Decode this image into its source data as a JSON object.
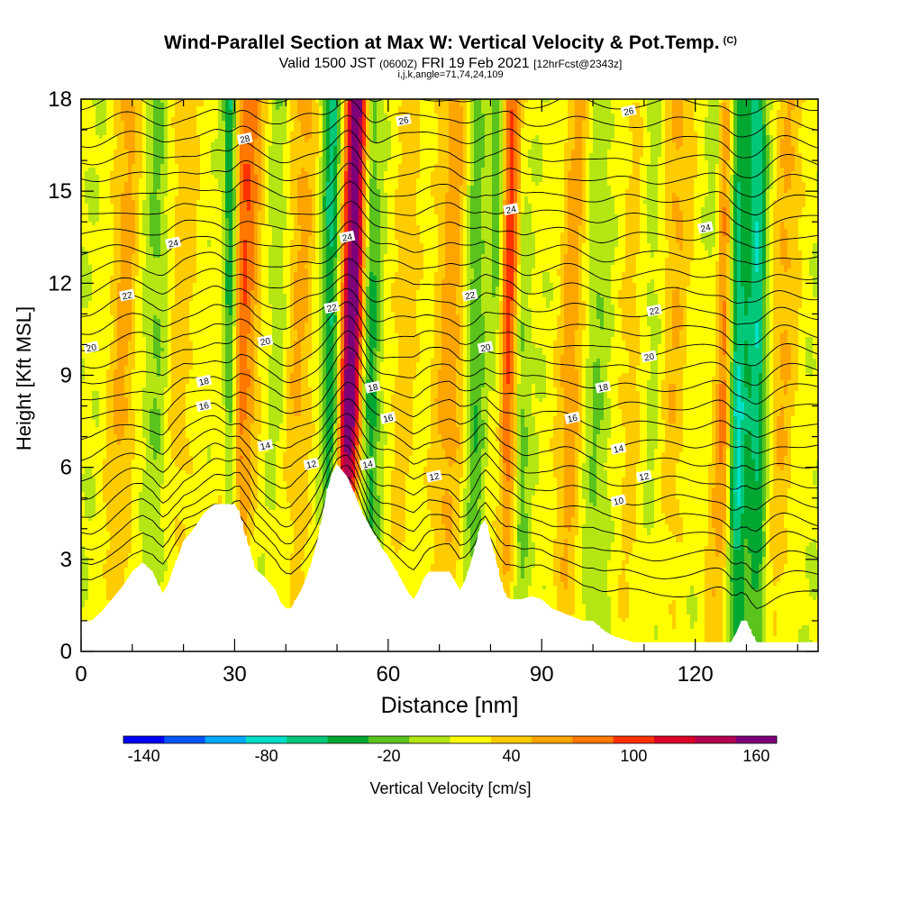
{
  "header": {
    "title": "Wind-Parallel Section at Max W: Vertical Velocity & Pot.Temp.",
    "copyright": "(C)",
    "valid_text": "Valid 1500 JST",
    "zulu_text": "(0600Z)",
    "date_text": "FRI 19 Feb 2021",
    "forecast_text": "[12hrFcst@2343z]",
    "params_text": "i,j,k,angle=71,74,24,109"
  },
  "colorbar": {
    "label": "Vertical Velocity [cm/s]",
    "tick_labels": [
      "-140",
      "-80",
      "-20",
      "40",
      "100",
      "160"
    ],
    "tick_values": [
      -140,
      -80,
      -20,
      40,
      100,
      160
    ],
    "min": -150,
    "max": 170,
    "step": 20,
    "colors": [
      "#0000ff",
      "#0055ff",
      "#00aaff",
      "#00e0c8",
      "#00c878",
      "#00a832",
      "#5ac31e",
      "#b4e614",
      "#ffff00",
      "#ffcc00",
      "#ffa500",
      "#ff7800",
      "#ff3200",
      "#dc0028",
      "#b40050",
      "#7d0078"
    ]
  },
  "chart_data": {
    "type": "heatmap",
    "title": "Wind-Parallel Section at Max W: Vertical Velocity & Pot.Temp.",
    "xlabel": "Distance [nm]",
    "ylabel": "Height [Kft MSL]",
    "xlim": [
      0,
      144
    ],
    "ylim": [
      0,
      18
    ],
    "x_ticks": [
      0,
      30,
      60,
      90,
      120
    ],
    "y_ticks": [
      0,
      3,
      6,
      9,
      12,
      15,
      18
    ],
    "variable": "Vertical Velocity [cm/s]",
    "contour_variable": "Pot.Temp.",
    "contour_labels": [
      {
        "text": "28",
        "x": 32,
        "y": 16.7
      },
      {
        "text": "26",
        "x": 63,
        "y": 17.3
      },
      {
        "text": "26",
        "x": 107,
        "y": 17.6
      },
      {
        "text": "24",
        "x": 18,
        "y": 13.3
      },
      {
        "text": "24",
        "x": 52,
        "y": 13.5
      },
      {
        "text": "24",
        "x": 84,
        "y": 14.4
      },
      {
        "text": "24",
        "x": 122,
        "y": 13.8
      },
      {
        "text": "22",
        "x": 9,
        "y": 11.6
      },
      {
        "text": "22",
        "x": 49,
        "y": 11.2
      },
      {
        "text": "22",
        "x": 76,
        "y": 11.6
      },
      {
        "text": "22",
        "x": 112,
        "y": 11.1
      },
      {
        "text": "20",
        "x": 2,
        "y": 9.9
      },
      {
        "text": "20",
        "x": 36,
        "y": 10.1
      },
      {
        "text": "20",
        "x": 79,
        "y": 9.9
      },
      {
        "text": "20",
        "x": 111,
        "y": 9.6
      },
      {
        "text": "18",
        "x": 24,
        "y": 8.8
      },
      {
        "text": "18",
        "x": 57,
        "y": 8.6
      },
      {
        "text": "18",
        "x": 102,
        "y": 8.6
      },
      {
        "text": "16",
        "x": 24,
        "y": 8.0
      },
      {
        "text": "16",
        "x": 60,
        "y": 7.6
      },
      {
        "text": "16",
        "x": 96,
        "y": 7.6
      },
      {
        "text": "14",
        "x": 36,
        "y": 6.7
      },
      {
        "text": "14",
        "x": 56,
        "y": 6.1
      },
      {
        "text": "14",
        "x": 105,
        "y": 6.6
      },
      {
        "text": "12",
        "x": 45,
        "y": 6.1
      },
      {
        "text": "12",
        "x": 69,
        "y": 5.7
      },
      {
        "text": "12",
        "x": 110,
        "y": 5.7
      },
      {
        "text": "10",
        "x": 105,
        "y": 4.9
      }
    ],
    "updraft_bands": [
      {
        "x": 8,
        "width": 2.8,
        "peak": 45
      },
      {
        "x": 19,
        "width": 3.5,
        "peak": 30
      },
      {
        "x": 31,
        "width": 3.2,
        "peak": 80
      },
      {
        "x": 42,
        "width": 3.5,
        "peak": 45
      },
      {
        "x": 52.5,
        "width": 2.4,
        "peak": 165
      },
      {
        "x": 63,
        "width": 2.8,
        "peak": 30
      },
      {
        "x": 72,
        "width": 3.5,
        "peak": 50
      },
      {
        "x": 83,
        "width": 2.4,
        "peak": 100
      },
      {
        "x": 96,
        "width": 3.0,
        "peak": 55
      },
      {
        "x": 108,
        "width": 3.5,
        "peak": 30
      },
      {
        "x": 115,
        "width": 3.5,
        "peak": 45
      },
      {
        "x": 125.5,
        "width": 2.4,
        "peak": 90
      },
      {
        "x": 137,
        "width": 3.0,
        "peak": 40
      }
    ],
    "downdraft_bands": [
      {
        "x": 15,
        "width": 2.5,
        "peak": -30
      },
      {
        "x": 29.2,
        "width": 1.4,
        "peak": -90
      },
      {
        "x": 39,
        "width": 2.5,
        "peak": -25
      },
      {
        "x": 49,
        "width": 2.0,
        "peak": -75
      },
      {
        "x": 56.5,
        "width": 1.8,
        "peak": -60
      },
      {
        "x": 77,
        "width": 2.0,
        "peak": -45
      },
      {
        "x": 81.5,
        "width": 1.5,
        "peak": -60
      },
      {
        "x": 86,
        "width": 1.5,
        "peak": -40
      },
      {
        "x": 100,
        "width": 3.0,
        "peak": -30
      },
      {
        "x": 112,
        "width": 3.0,
        "peak": -35
      },
      {
        "x": 124,
        "width": 1.4,
        "peak": -30
      },
      {
        "x": 128,
        "width": 1.8,
        "peak": -110
      },
      {
        "x": 132,
        "width": 2.0,
        "peak": -80
      }
    ],
    "terrain": [
      {
        "x": 0,
        "h": 1.0
      },
      {
        "x": 2,
        "h": 1.0
      },
      {
        "x": 4,
        "h": 1.3
      },
      {
        "x": 6,
        "h": 1.7
      },
      {
        "x": 8,
        "h": 2.1
      },
      {
        "x": 10,
        "h": 2.6
      },
      {
        "x": 12,
        "h": 2.9
      },
      {
        "x": 14,
        "h": 2.6
      },
      {
        "x": 15,
        "h": 2.2
      },
      {
        "x": 16,
        "h": 1.9
      },
      {
        "x": 17,
        "h": 2.2
      },
      {
        "x": 18,
        "h": 2.7
      },
      {
        "x": 19,
        "h": 3.1
      },
      {
        "x": 20,
        "h": 3.6
      },
      {
        "x": 22,
        "h": 4.0
      },
      {
        "x": 24,
        "h": 4.5
      },
      {
        "x": 26,
        "h": 4.8
      },
      {
        "x": 30,
        "h": 4.8
      },
      {
        "x": 31,
        "h": 4.5
      },
      {
        "x": 32,
        "h": 3.8
      },
      {
        "x": 33,
        "h": 3.3
      },
      {
        "x": 34,
        "h": 2.7
      },
      {
        "x": 36,
        "h": 2.4
      },
      {
        "x": 38,
        "h": 2.0
      },
      {
        "x": 39,
        "h": 1.6
      },
      {
        "x": 40,
        "h": 1.4
      },
      {
        "x": 41,
        "h": 1.4
      },
      {
        "x": 42,
        "h": 1.7
      },
      {
        "x": 43,
        "h": 2.0
      },
      {
        "x": 44,
        "h": 2.4
      },
      {
        "x": 45,
        "h": 2.9
      },
      {
        "x": 46,
        "h": 3.5
      },
      {
        "x": 47,
        "h": 4.3
      },
      {
        "x": 48,
        "h": 5.2
      },
      {
        "x": 49,
        "h": 5.8
      },
      {
        "x": 50,
        "h": 6.1
      },
      {
        "x": 51,
        "h": 5.9
      },
      {
        "x": 52,
        "h": 5.7
      },
      {
        "x": 53,
        "h": 5.3
      },
      {
        "x": 54,
        "h": 4.9
      },
      {
        "x": 55,
        "h": 4.5
      },
      {
        "x": 56,
        "h": 4.2
      },
      {
        "x": 57,
        "h": 3.9
      },
      {
        "x": 58,
        "h": 3.6
      },
      {
        "x": 59,
        "h": 3.3
      },
      {
        "x": 60,
        "h": 3.1
      },
      {
        "x": 61,
        "h": 2.8
      },
      {
        "x": 62,
        "h": 2.5
      },
      {
        "x": 63,
        "h": 2.2
      },
      {
        "x": 64,
        "h": 1.9
      },
      {
        "x": 65,
        "h": 1.7
      },
      {
        "x": 66,
        "h": 2.0
      },
      {
        "x": 67,
        "h": 2.4
      },
      {
        "x": 68,
        "h": 2.6
      },
      {
        "x": 70,
        "h": 2.6
      },
      {
        "x": 72,
        "h": 2.6
      },
      {
        "x": 73,
        "h": 2.3
      },
      {
        "x": 74,
        "h": 2.0
      },
      {
        "x": 75,
        "h": 2.3
      },
      {
        "x": 76,
        "h": 2.8
      },
      {
        "x": 77,
        "h": 3.4
      },
      {
        "x": 78,
        "h": 4.1
      },
      {
        "x": 79,
        "h": 4.3
      },
      {
        "x": 80,
        "h": 3.7
      },
      {
        "x": 81,
        "h": 3.0
      },
      {
        "x": 82,
        "h": 2.3
      },
      {
        "x": 83,
        "h": 1.8
      },
      {
        "x": 84,
        "h": 1.7
      },
      {
        "x": 86,
        "h": 1.7
      },
      {
        "x": 88,
        "h": 1.8
      },
      {
        "x": 90,
        "h": 1.7
      },
      {
        "x": 92,
        "h": 1.4
      },
      {
        "x": 95,
        "h": 1.2
      },
      {
        "x": 98,
        "h": 1.0
      },
      {
        "x": 100,
        "h": 1.0
      },
      {
        "x": 102,
        "h": 0.7
      },
      {
        "x": 104,
        "h": 0.5
      },
      {
        "x": 106,
        "h": 0.4
      },
      {
        "x": 108,
        "h": 0.3
      },
      {
        "x": 127,
        "h": 0.3
      },
      {
        "x": 128,
        "h": 0.6
      },
      {
        "x": 129,
        "h": 1.0
      },
      {
        "x": 130,
        "h": 1.0
      },
      {
        "x": 131,
        "h": 0.6
      },
      {
        "x": 132,
        "h": 0.3
      },
      {
        "x": 144,
        "h": 0.3
      }
    ]
  }
}
